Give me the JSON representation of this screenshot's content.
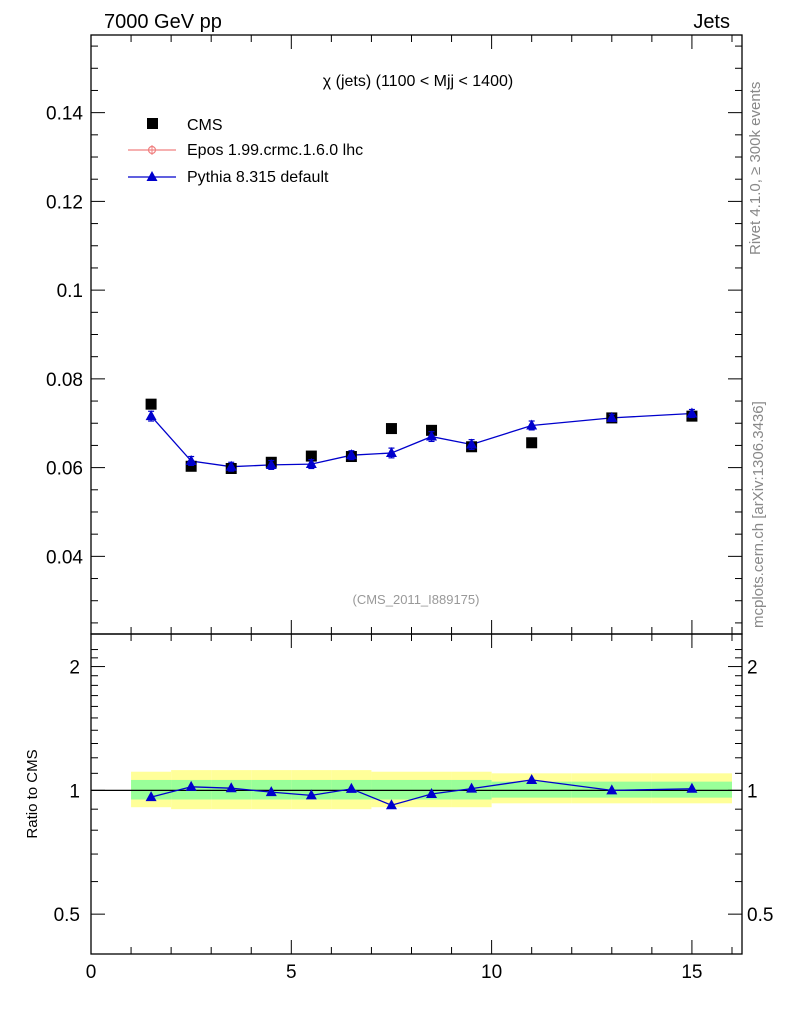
{
  "header": {
    "left": "7000 GeV pp",
    "right": "Jets"
  },
  "side_labels": {
    "rivet": "Rivet 4.1.0, ≥ 300k events",
    "mcplots": "mcplots.cern.ch [arXiv:1306.3436]"
  },
  "chart_data": [
    {
      "type": "line",
      "panel": "main",
      "title": "χ (jets) (1100 < Mjj < 1400)",
      "reference": "(CMS_2011_I889175)",
      "xlim": [
        0,
        16.25
      ],
      "ylim": [
        0.0225,
        0.1575
      ],
      "yticks": [
        0.04,
        0.06,
        0.08,
        0.1,
        0.12,
        0.14
      ],
      "ytick_labels": [
        "0.04",
        "0.06",
        "0.08",
        "0.1",
        "0.12",
        "0.14"
      ],
      "legend": [
        {
          "label": "CMS",
          "color": "#000000",
          "marker": "square"
        },
        {
          "label": "Epos 1.99.crmc.1.6.0 lhc",
          "color": "#f08080",
          "marker": "open-circle"
        },
        {
          "label": "Pythia 8.315 default",
          "color": "#0000cc",
          "marker": "triangle"
        }
      ],
      "series": [
        {
          "name": "CMS",
          "style": "markers",
          "x": [
            1.5,
            2.5,
            3.5,
            4.5,
            5.5,
            6.5,
            7.5,
            8.5,
            9.5,
            11,
            13,
            15
          ],
          "y": [
            0.0743,
            0.0603,
            0.0598,
            0.0612,
            0.0626,
            0.0625,
            0.0688,
            0.0684,
            0.0647,
            0.0656,
            0.0712,
            0.0716
          ]
        },
        {
          "name": "Pythia 8.315 default",
          "style": "line-markers",
          "x": [
            1.5,
            2.5,
            3.5,
            4.5,
            5.5,
            6.5,
            7.5,
            8.5,
            9.5,
            11,
            13,
            15
          ],
          "y": [
            0.0716,
            0.0615,
            0.0602,
            0.0606,
            0.0608,
            0.0628,
            0.0633,
            0.067,
            0.0652,
            0.0695,
            0.0712,
            0.0722
          ],
          "err": [
            0.0011,
            0.001,
            0.001,
            0.001,
            0.001,
            0.001,
            0.0011,
            0.0011,
            0.0011,
            0.001,
            0.0008,
            0.0009
          ]
        }
      ]
    },
    {
      "type": "line",
      "panel": "ratio",
      "ylabel": "Ratio to CMS",
      "xlim": [
        0,
        16.25
      ],
      "ylim": [
        0.4,
        2.4
      ],
      "yscale": "log",
      "yticks": [
        0.5,
        1,
        2
      ],
      "ytick_labels": [
        "0.5",
        "1",
        "2"
      ],
      "xticks": [
        0,
        5,
        10,
        15
      ],
      "xtick_labels": [
        "0",
        "5",
        "10",
        "15"
      ],
      "bands": {
        "yellow_color": "#ffff99",
        "green_color": "#99ff99",
        "bins": [
          {
            "lo": 1,
            "hi": 2,
            "yellow": [
              0.91,
              1.11
            ],
            "green": [
              0.95,
              1.06
            ]
          },
          {
            "lo": 2,
            "hi": 3,
            "yellow": [
              0.9,
              1.12
            ],
            "green": [
              0.95,
              1.06
            ]
          },
          {
            "lo": 3,
            "hi": 4,
            "yellow": [
              0.9,
              1.12
            ],
            "green": [
              0.95,
              1.06
            ]
          },
          {
            "lo": 4,
            "hi": 5,
            "yellow": [
              0.9,
              1.12
            ],
            "green": [
              0.95,
              1.06
            ]
          },
          {
            "lo": 5,
            "hi": 6,
            "yellow": [
              0.9,
              1.12
            ],
            "green": [
              0.95,
              1.06
            ]
          },
          {
            "lo": 6,
            "hi": 7,
            "yellow": [
              0.9,
              1.12
            ],
            "green": [
              0.95,
              1.06
            ]
          },
          {
            "lo": 7,
            "hi": 8,
            "yellow": [
              0.91,
              1.11
            ],
            "green": [
              0.95,
              1.06
            ]
          },
          {
            "lo": 8,
            "hi": 9,
            "yellow": [
              0.91,
              1.11
            ],
            "green": [
              0.95,
              1.06
            ]
          },
          {
            "lo": 9,
            "hi": 10,
            "yellow": [
              0.91,
              1.11
            ],
            "green": [
              0.95,
              1.06
            ]
          },
          {
            "lo": 10,
            "hi": 12,
            "yellow": [
              0.93,
              1.1
            ],
            "green": [
              0.96,
              1.05
            ]
          },
          {
            "lo": 12,
            "hi": 14,
            "yellow": [
              0.93,
              1.1
            ],
            "green": [
              0.96,
              1.05
            ]
          },
          {
            "lo": 14,
            "hi": 16,
            "yellow": [
              0.93,
              1.1
            ],
            "green": [
              0.96,
              1.05
            ]
          }
        ]
      },
      "series": [
        {
          "name": "Pythia 8.315 default",
          "x": [
            1.5,
            2.5,
            3.5,
            4.5,
            5.5,
            6.5,
            7.5,
            8.5,
            9.5,
            11,
            13,
            15
          ],
          "y": [
            0.963,
            1.02,
            1.012,
            0.99,
            0.972,
            1.008,
            0.92,
            0.98,
            1.01,
            1.06,
            1.0,
            1.009
          ]
        }
      ]
    }
  ]
}
